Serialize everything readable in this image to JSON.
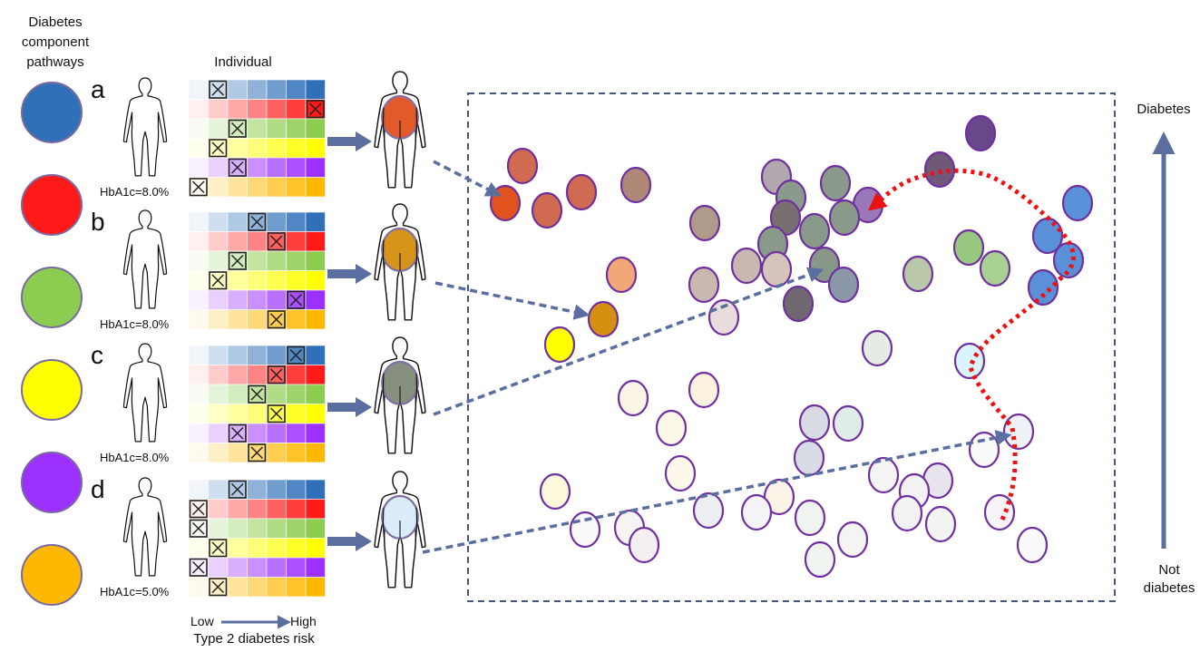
{
  "colors": {
    "pathways": [
      "#3070b8",
      "#ff1a1a",
      "#8ccc50",
      "#ffff00",
      "#9b30ff",
      "#ffb800"
    ],
    "arrow": "#5a6ea0",
    "trajectory": "#ee1111",
    "circle_stroke": "#7030a0",
    "box_stroke": "#46557a"
  },
  "left_legend": {
    "title_lines": [
      "Diabetes",
      "component",
      "pathways"
    ]
  },
  "individual_header": "Individual",
  "panels": [
    {
      "letter": "a",
      "hba1c_label": "HbA1c=8.0%",
      "risk_levels": [
        2,
        7,
        3,
        2,
        3,
        1
      ],
      "avatar_color": "#e2521f"
    },
    {
      "letter": "b",
      "hba1c_label": "HbA1c=8.0%",
      "risk_levels": [
        4,
        5,
        3,
        2,
        6,
        5
      ],
      "avatar_color": "#d4900e"
    },
    {
      "letter": "c",
      "hba1c_label": "HbA1c=8.0%",
      "risk_levels": [
        6,
        5,
        4,
        5,
        3,
        4
      ],
      "avatar_color": "#808878"
    },
    {
      "letter": "d",
      "hba1c_label": "HbA1c=5.0%",
      "risk_levels": [
        3,
        1,
        1,
        2,
        1,
        2
      ],
      "avatar_color": "#d8ecf8"
    }
  ],
  "risk_axis": {
    "low": "Low",
    "high": "High",
    "title": "Type 2 diabetes risk"
  },
  "outcome_axis": {
    "top": "Diabetes",
    "bottom_lines": [
      "Not",
      "diabetes"
    ]
  }
}
